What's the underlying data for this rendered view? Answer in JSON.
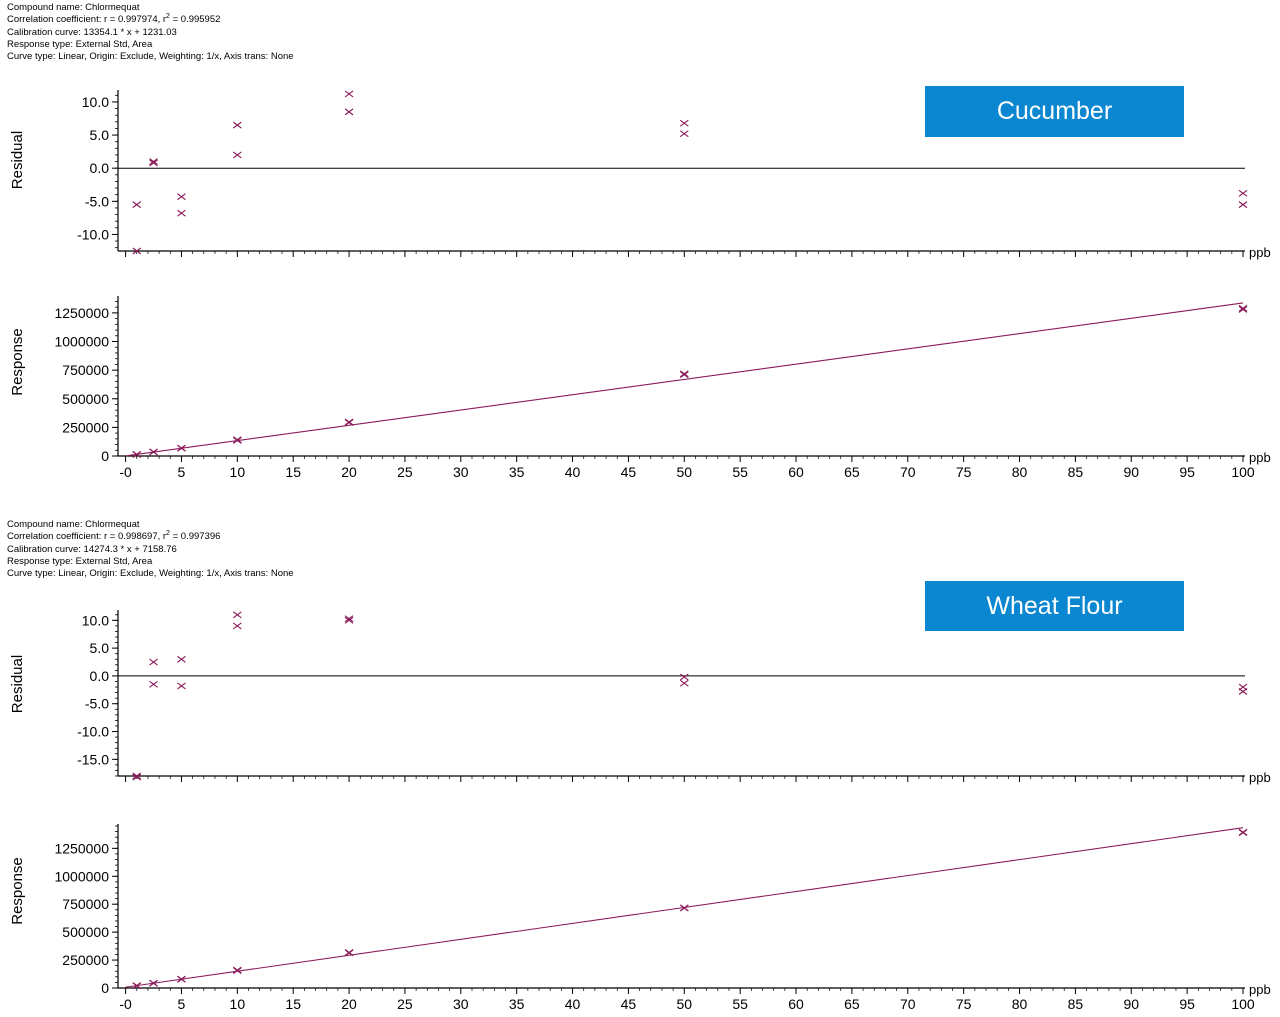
{
  "colors": {
    "marker": "#8b1a5a",
    "fit_line": "#8b1a5a",
    "badge_bg": "#0a87d0",
    "axis": "#000000"
  },
  "panels": [
    {
      "badge": "Cucumber",
      "info": {
        "compound": "Compound name: Chlormequat",
        "corr_prefix": "Correlation coefficient: r = 0.997974, r",
        "corr_sup": "2",
        "corr_suffix": " = 0.995952",
        "calibration": "Calibration curve: 13354.1 * x + 1231.03",
        "response_type": "Response type: External Std, Area",
        "curve_type": "Curve type: Linear, Origin: Exclude, Weighting: 1/x, Axis trans: None"
      }
    },
    {
      "badge": "Wheat Flour",
      "info": {
        "compound": "Compound name: Chlormequat",
        "corr_prefix": "Correlation coefficient: r = 0.998697, r",
        "corr_sup": "2",
        "corr_suffix": " = 0.997396",
        "calibration": "Calibration curve: 14274.3 * x + 7158.76",
        "response_type": "Response type: External Std, Area",
        "curve_type": "Curve type: Linear, Origin: Exclude, Weighting: 1/x, Axis trans: None"
      }
    }
  ],
  "chart_data": [
    {
      "type": "scatter",
      "title": "",
      "ylabel": "Residual",
      "xlabel": "ppb",
      "xlim": [
        -0.5,
        100
      ],
      "ylim": [
        -12.5,
        11.5
      ],
      "yticks": [
        10,
        5,
        0,
        -5,
        -10
      ],
      "ytick_labels": [
        "10.0",
        "5.0",
        "0.0",
        "-5.0",
        "-10.0"
      ],
      "zero_line": true,
      "points": [
        [
          1,
          -5.5
        ],
        [
          1,
          -12.5
        ],
        [
          2.5,
          0.8
        ],
        [
          2.5,
          1.0
        ],
        [
          5,
          -4.3
        ],
        [
          5,
          -6.8
        ],
        [
          10,
          6.5
        ],
        [
          10,
          2.0
        ],
        [
          20,
          11.2
        ],
        [
          20,
          8.5
        ],
        [
          50,
          6.8
        ],
        [
          50,
          5.2
        ],
        [
          100,
          -3.8
        ],
        [
          100,
          -5.5
        ]
      ]
    },
    {
      "type": "scatter",
      "title": "",
      "ylabel": "Response",
      "xlabel": "ppb",
      "xlim": [
        -0.5,
        100
      ],
      "ylim": [
        0,
        1380000
      ],
      "yticks": [
        0,
        250000,
        500000,
        750000,
        1000000,
        1250000
      ],
      "ytick_labels": [
        "0",
        "250000",
        "500000",
        "750000",
        "1000000",
        "1250000"
      ],
      "xticks": [
        0,
        5,
        10,
        15,
        20,
        25,
        30,
        35,
        40,
        45,
        50,
        55,
        60,
        65,
        70,
        75,
        80,
        85,
        90,
        95,
        100
      ],
      "xtick_labels": [
        "-0",
        "5",
        "10",
        "15",
        "20",
        "25",
        "30",
        "35",
        "40",
        "45",
        "50",
        "55",
        "60",
        "65",
        "70",
        "75",
        "80",
        "85",
        "90",
        "95",
        "100"
      ],
      "fit_line": {
        "slope": 13354.1,
        "intercept": 1231.03
      },
      "points": [
        [
          1,
          13000
        ],
        [
          1,
          15000
        ],
        [
          2.5,
          35000
        ],
        [
          2.5,
          35500
        ],
        [
          5,
          67000
        ],
        [
          5,
          69000
        ],
        [
          10,
          143000
        ],
        [
          10,
          136000
        ],
        [
          20,
          298000
        ],
        [
          20,
          292000
        ],
        [
          50,
          718000
        ],
        [
          50,
          710000
        ],
        [
          100,
          1290000
        ],
        [
          100,
          1280000
        ]
      ]
    },
    {
      "type": "scatter",
      "title": "",
      "ylabel": "Residual",
      "xlabel": "ppb",
      "xlim": [
        -0.5,
        100
      ],
      "ylim": [
        -18,
        11.5
      ],
      "yticks": [
        10,
        5,
        0,
        -5,
        -10,
        -15
      ],
      "ytick_labels": [
        "10.0",
        "5.0",
        "0.0",
        "-5.0",
        "-10.0",
        "-15.0"
      ],
      "zero_line": true,
      "points": [
        [
          1,
          -18
        ],
        [
          1,
          -18.2
        ],
        [
          2.5,
          2.5
        ],
        [
          2.5,
          -1.5
        ],
        [
          5,
          3.0
        ],
        [
          5,
          -1.8
        ],
        [
          10,
          11.0
        ],
        [
          10,
          9.0
        ],
        [
          20,
          10.3
        ],
        [
          20,
          10.0
        ],
        [
          50,
          -0.2
        ],
        [
          50,
          -1.3
        ],
        [
          100,
          -2.0
        ],
        [
          100,
          -2.8
        ]
      ]
    },
    {
      "type": "scatter",
      "title": "",
      "ylabel": "Response",
      "xlabel": "ppb",
      "xlim": [
        -0.5,
        100
      ],
      "ylim": [
        0,
        1450000
      ],
      "yticks": [
        0,
        250000,
        500000,
        750000,
        1000000,
        1250000
      ],
      "ytick_labels": [
        "0",
        "250000",
        "500000",
        "750000",
        "1000000",
        "1250000"
      ],
      "xticks": [
        0,
        5,
        10,
        15,
        20,
        25,
        30,
        35,
        40,
        45,
        50,
        55,
        60,
        65,
        70,
        75,
        80,
        85,
        90,
        95,
        100
      ],
      "xtick_labels": [
        "-0",
        "5",
        "10",
        "15",
        "20",
        "25",
        "30",
        "35",
        "40",
        "45",
        "50",
        "55",
        "60",
        "65",
        "70",
        "75",
        "80",
        "85",
        "90",
        "95",
        "100"
      ],
      "fit_line": {
        "slope": 14274.3,
        "intercept": 7158.76
      },
      "points": [
        [
          1,
          20000
        ],
        [
          1,
          22000
        ],
        [
          2.5,
          42000
        ],
        [
          2.5,
          44000
        ],
        [
          5,
          78000
        ],
        [
          5,
          80000
        ],
        [
          10,
          160000
        ],
        [
          10,
          155000
        ],
        [
          20,
          318000
        ],
        [
          20,
          314000
        ],
        [
          50,
          718000
        ],
        [
          50,
          715000
        ],
        [
          100,
          1395000
        ],
        [
          100,
          1390000
        ]
      ]
    }
  ]
}
